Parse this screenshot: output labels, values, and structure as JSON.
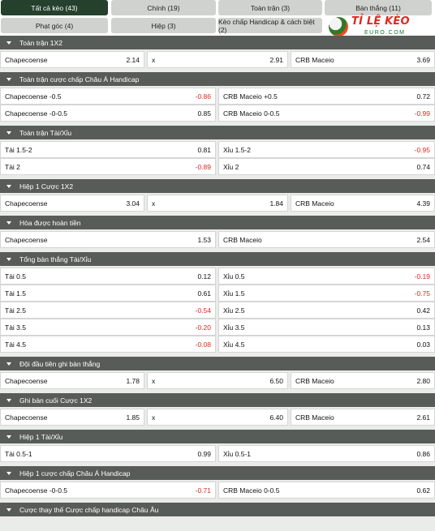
{
  "tabs": [
    {
      "label": "Tất cả kèo (43)",
      "active": true
    },
    {
      "label": "Chính (19)",
      "active": false
    },
    {
      "label": "Toàn trận (3)",
      "active": false
    },
    {
      "label": "Bàn thắng (11)",
      "active": false
    },
    {
      "label": "Phạt góc (4)",
      "active": false
    },
    {
      "label": "Hiệp (3)",
      "active": false
    },
    {
      "label": "Kèo chấp Handicap & cách biệt (2)",
      "active": false
    }
  ],
  "logo": {
    "brand": "TỈ LỆ KÈO",
    "sub": "EURO.COM"
  },
  "sections": [
    {
      "title": "Toàn trận 1X2",
      "layout": "three",
      "rows": [
        [
          {
            "label": "Chapecoense",
            "odd": "2.14"
          },
          {
            "label": "x",
            "odd": "2.91"
          },
          {
            "label": "CRB Maceio",
            "odd": "3.69"
          }
        ]
      ]
    },
    {
      "title": "Toàn trận cược chấp Châu Á Handicap",
      "layout": "two",
      "rows": [
        [
          {
            "label": "Chapecoense -0.5",
            "odd": "-0.86"
          },
          {
            "label": "CRB Maceio +0.5",
            "odd": "0.72"
          }
        ],
        [
          {
            "label": "Chapecoense -0-0.5",
            "odd": "0.85"
          },
          {
            "label": "CRB Maceio 0-0.5",
            "odd": "-0.99"
          }
        ]
      ]
    },
    {
      "title": "Toàn trận Tài/Xỉu",
      "layout": "two",
      "rows": [
        [
          {
            "label": "Tài 1.5-2",
            "odd": "0.81"
          },
          {
            "label": "Xỉu 1.5-2",
            "odd": "-0.95"
          }
        ],
        [
          {
            "label": "Tài 2",
            "odd": "-0.89"
          },
          {
            "label": "Xỉu 2",
            "odd": "0.74"
          }
        ]
      ]
    },
    {
      "title": "Hiệp 1 Cược 1X2",
      "layout": "three",
      "rows": [
        [
          {
            "label": "Chapecoense",
            "odd": "3.04"
          },
          {
            "label": "x",
            "odd": "1.84"
          },
          {
            "label": "CRB Maceio",
            "odd": "4.39"
          }
        ]
      ]
    },
    {
      "title": "Hòa được hoàn tiền",
      "layout": "two",
      "rows": [
        [
          {
            "label": "Chapecoense",
            "odd": "1.53"
          },
          {
            "label": "CRB Maceio",
            "odd": "2.54"
          }
        ]
      ]
    },
    {
      "title": "Tổng bàn thắng Tài/Xỉu",
      "layout": "two",
      "rows": [
        [
          {
            "label": "Tài 0.5",
            "odd": "0.12"
          },
          {
            "label": "Xỉu 0.5",
            "odd": "-0.19"
          }
        ],
        [
          {
            "label": "Tài 1.5",
            "odd": "0.61"
          },
          {
            "label": "Xỉu 1.5",
            "odd": "-0.75"
          }
        ],
        [
          {
            "label": "Tài 2.5",
            "odd": "-0.54"
          },
          {
            "label": "Xỉu 2.5",
            "odd": "0.42"
          }
        ],
        [
          {
            "label": "Tài 3.5",
            "odd": "-0.20"
          },
          {
            "label": "Xỉu 3.5",
            "odd": "0.13"
          }
        ],
        [
          {
            "label": "Tài 4.5",
            "odd": "-0.08"
          },
          {
            "label": "Xỉu 4.5",
            "odd": "0.03"
          }
        ]
      ]
    },
    {
      "title": "Đội đầu tiên ghi bàn thắng",
      "layout": "three",
      "rows": [
        [
          {
            "label": "Chapecoense",
            "odd": "1.78"
          },
          {
            "label": "x",
            "odd": "6.50"
          },
          {
            "label": "CRB Maceio",
            "odd": "2.80"
          }
        ]
      ]
    },
    {
      "title": "Ghi bàn cuối Cược 1X2",
      "layout": "three",
      "rows": [
        [
          {
            "label": "Chapecoense",
            "odd": "1.85"
          },
          {
            "label": "x",
            "odd": "6.40"
          },
          {
            "label": "CRB Maceio",
            "odd": "2.61"
          }
        ]
      ]
    },
    {
      "title": "Hiệp 1 Tài/Xỉu",
      "layout": "two",
      "rows": [
        [
          {
            "label": "Tài 0.5-1",
            "odd": "0.99"
          },
          {
            "label": "Xỉu 0.5-1",
            "odd": "0.86"
          }
        ]
      ]
    },
    {
      "title": "Hiệp 1 cược chấp Châu Á Handicap",
      "layout": "two",
      "rows": [
        [
          {
            "label": "Chapecoense -0-0.5",
            "odd": "-0.71"
          },
          {
            "label": "CRB Maceio 0-0.5",
            "odd": "0.62"
          }
        ]
      ]
    },
    {
      "title": "Cược thay thế Cược chấp handicap Châu Âu",
      "layout": "two",
      "rows": []
    }
  ]
}
